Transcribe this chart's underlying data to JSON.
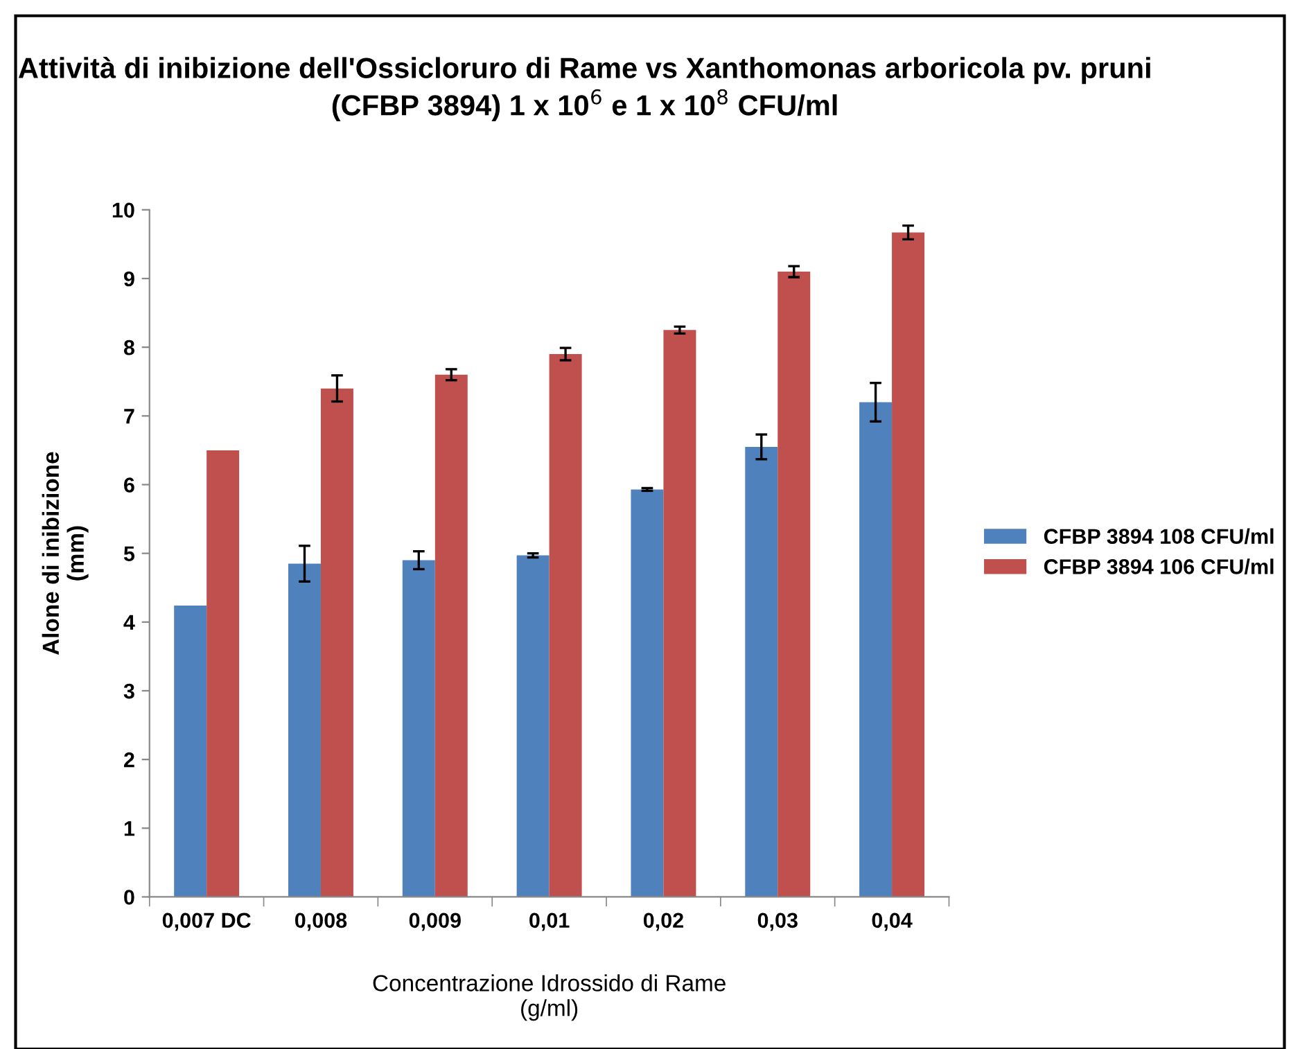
{
  "chart_data": {
    "type": "bar",
    "title": "Attività di inibizione dell'Ossicloruro di Rame vs Xanthomonas arboricola pv. pruni (CFBP 3894) 1 x 10$^{6}$ e 1 x 10$^{8}$ CFU/ml",
    "xlabel": "Concentrazione Idrossido di Rame\n(g/ml)",
    "ylabel": "Alone di inibizione\n(mm)",
    "categories": [
      "0,007 DC",
      "0,008",
      "0,009",
      "0,01",
      "0,02",
      "0,03",
      "0,04"
    ],
    "series": [
      {
        "name": "CFBP 3894 108 CFU/ml",
        "color": "#4f81bd",
        "values": [
          4.24,
          4.85,
          4.9,
          4.97,
          5.93,
          6.55,
          7.2
        ],
        "errors": [
          null,
          0.26,
          0.13,
          0.03,
          0.02,
          0.18,
          0.28
        ]
      },
      {
        "name": "CFBP 3894 106 CFU/ml",
        "color": "#c0504d",
        "values": [
          6.5,
          7.4,
          7.6,
          7.9,
          8.25,
          9.1,
          9.67
        ],
        "errors": [
          null,
          0.19,
          0.08,
          0.09,
          0.05,
          0.08,
          0.1
        ]
      }
    ],
    "ylim": [
      0,
      10
    ],
    "yticks": [
      0,
      1,
      2,
      3,
      4,
      5,
      6,
      7,
      8,
      9,
      10
    ],
    "grid": false,
    "legend": "right"
  }
}
